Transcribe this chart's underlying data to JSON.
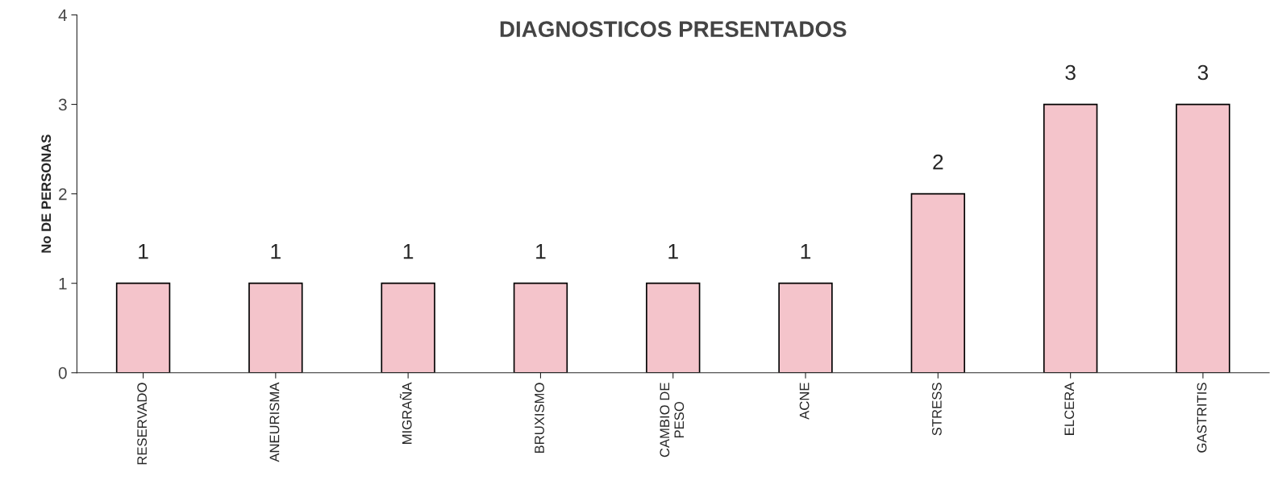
{
  "chart_data": {
    "type": "bar",
    "title": "DIAGNOSTICOS PRESENTADOS",
    "ylabel": "No DE PERSONAS",
    "categories": [
      "RESERVADO",
      "ANEURISMA",
      "MIGRAÑA",
      "BRUXISMO",
      "CAMBIO DE PESO",
      "ACNE",
      "STRESS",
      "ELCERA",
      "GASTRITIS"
    ],
    "values": [
      1,
      1,
      1,
      1,
      1,
      1,
      2,
      3,
      3
    ],
    "color": "#f4c4cb",
    "ylim": [
      0,
      4
    ],
    "yticks": [
      0,
      1,
      2,
      3,
      4
    ],
    "grid": false,
    "data_labels": true
  }
}
